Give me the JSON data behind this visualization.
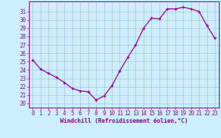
{
  "x": [
    0,
    1,
    2,
    3,
    4,
    5,
    6,
    7,
    8,
    9,
    10,
    11,
    12,
    13,
    14,
    15,
    16,
    17,
    18,
    19,
    20,
    21,
    22,
    23
  ],
  "y": [
    25.2,
    24.1,
    23.6,
    23.1,
    22.5,
    21.8,
    21.5,
    21.4,
    20.4,
    20.9,
    22.1,
    23.9,
    25.5,
    27.0,
    29.0,
    30.2,
    30.1,
    31.3,
    31.3,
    31.5,
    31.3,
    31.0,
    29.3,
    27.8
  ],
  "line_color": "#990099",
  "marker": "+",
  "bg_color": "#cceeff",
  "grid_color": "#aacccc",
  "xlabel": "Windchill (Refroidissement éolien,°C)",
  "ylabel_ticks": [
    20,
    21,
    22,
    23,
    24,
    25,
    26,
    27,
    28,
    29,
    30,
    31
  ],
  "ylim": [
    19.5,
    32.2
  ],
  "xlim": [
    -0.5,
    23.5
  ],
  "tick_label_color": "#880088",
  "xlabel_color": "#880088",
  "font_family": "monospace",
  "tick_fontsize": 5.5,
  "xlabel_fontsize": 6.0,
  "linewidth": 1.0,
  "markersize": 3.5,
  "markeredgewidth": 1.0
}
